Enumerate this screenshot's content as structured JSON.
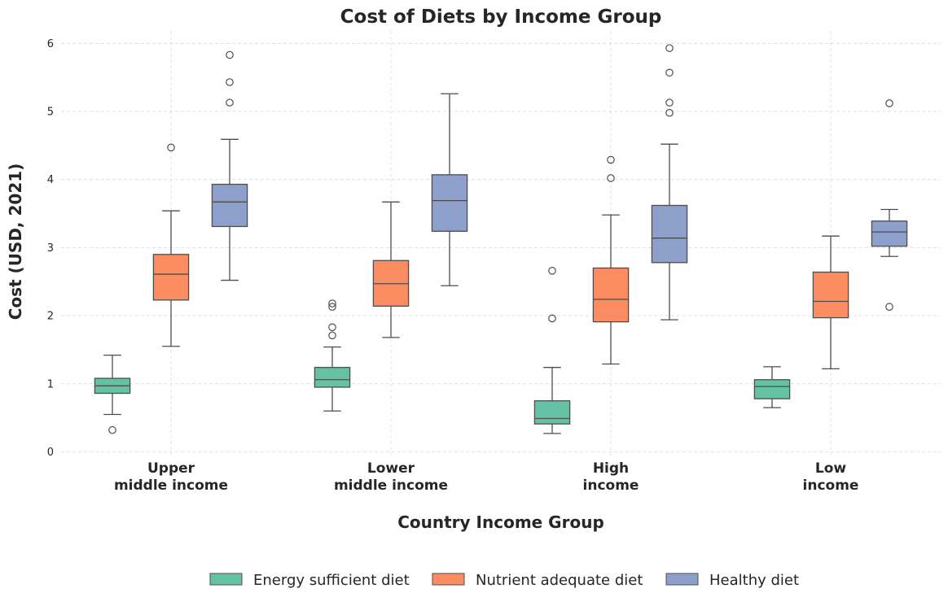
{
  "chart_data": {
    "type": "box",
    "title": "Cost of Diets by Income Group",
    "xlabel": "Country Income Group",
    "ylabel": "Cost (USD, 2021)",
    "ylim": [
      0,
      6.2
    ],
    "yticks": [
      0,
      1,
      2,
      3,
      4,
      5,
      6
    ],
    "grid": true,
    "legend_position": "bottom-center",
    "categories": [
      [
        "Upper",
        "middle income"
      ],
      [
        "Lower",
        "middle income"
      ],
      [
        "High",
        "income"
      ],
      [
        "Low",
        "income"
      ]
    ],
    "series": [
      {
        "name": "Energy sufficient diet",
        "color": "#66c2a5",
        "boxes": [
          {
            "whisker_low": 0.55,
            "q1": 0.86,
            "median": 0.97,
            "q3": 1.08,
            "whisker_high": 1.42,
            "outliers": [
              0.32
            ]
          },
          {
            "whisker_low": 0.6,
            "q1": 0.95,
            "median": 1.06,
            "q3": 1.24,
            "whisker_high": 1.54,
            "outliers": [
              1.71,
              1.83,
              2.13,
              2.18
            ]
          },
          {
            "whisker_low": 0.27,
            "q1": 0.41,
            "median": 0.49,
            "q3": 0.75,
            "whisker_high": 1.24,
            "outliers": [
              1.96,
              2.66
            ]
          },
          {
            "whisker_low": 0.65,
            "q1": 0.78,
            "median": 0.96,
            "q3": 1.06,
            "whisker_high": 1.25,
            "outliers": []
          }
        ]
      },
      {
        "name": "Nutrient adequate diet",
        "color": "#fc8d62",
        "boxes": [
          {
            "whisker_low": 1.55,
            "q1": 2.23,
            "median": 2.61,
            "q3": 2.9,
            "whisker_high": 3.54,
            "outliers": [
              4.47
            ]
          },
          {
            "whisker_low": 1.68,
            "q1": 2.14,
            "median": 2.47,
            "q3": 2.81,
            "whisker_high": 3.67,
            "outliers": []
          },
          {
            "whisker_low": 1.29,
            "q1": 1.91,
            "median": 2.24,
            "q3": 2.7,
            "whisker_high": 3.48,
            "outliers": [
              4.02,
              4.29
            ]
          },
          {
            "whisker_low": 1.22,
            "q1": 1.97,
            "median": 2.21,
            "q3": 2.64,
            "whisker_high": 3.17,
            "outliers": []
          }
        ]
      },
      {
        "name": "Healthy diet",
        "color": "#8da0cb",
        "boxes": [
          {
            "whisker_low": 2.52,
            "q1": 3.31,
            "median": 3.67,
            "q3": 3.93,
            "whisker_high": 4.59,
            "outliers": [
              5.13,
              5.43,
              5.83
            ]
          },
          {
            "whisker_low": 2.44,
            "q1": 3.24,
            "median": 3.69,
            "q3": 4.07,
            "whisker_high": 5.26,
            "outliers": []
          },
          {
            "whisker_low": 1.94,
            "q1": 2.78,
            "median": 3.14,
            "q3": 3.62,
            "whisker_high": 4.52,
            "outliers": [
              4.98,
              5.13,
              5.57,
              5.93
            ]
          },
          {
            "whisker_low": 2.87,
            "q1": 3.02,
            "median": 3.23,
            "q3": 3.39,
            "whisker_high": 3.56,
            "outliers": [
              2.13,
              5.12
            ]
          }
        ]
      }
    ]
  }
}
